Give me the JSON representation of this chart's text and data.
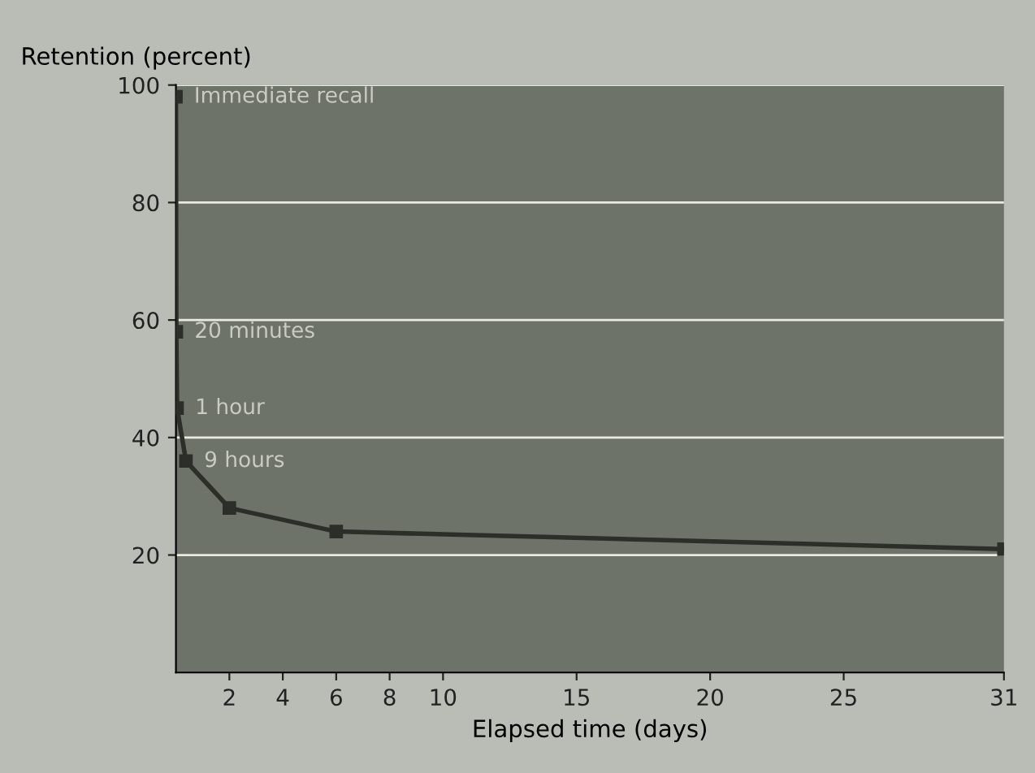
{
  "chart_data": {
    "type": "line",
    "ylabel": "Retention (percent)",
    "xlabel": "Elapsed time (days)",
    "x": [
      0,
      0.014,
      0.042,
      0.375,
      2,
      6,
      31
    ],
    "series": [
      {
        "color": "#2b2e29",
        "values": [
          98,
          58,
          45,
          36,
          28,
          24,
          21
        ]
      }
    ],
    "xlim": [
      0,
      31
    ],
    "xticks": [
      2,
      4,
      6,
      8,
      10,
      15,
      20,
      25,
      31
    ],
    "ylim": [
      0,
      100
    ],
    "yticks": [
      20,
      40,
      60,
      80,
      100
    ],
    "grid": "y",
    "marker": "square",
    "line_style": "solid",
    "legend": false,
    "annotations": [
      {
        "text": "Immediate recall",
        "x": 0,
        "y": 98
      },
      {
        "text": "20 minutes",
        "x": 0.014,
        "y": 58
      },
      {
        "text": "1 hour",
        "x": 0.042,
        "y": 45
      },
      {
        "text": "9 hours",
        "x": 0.375,
        "y": 36
      }
    ]
  }
}
